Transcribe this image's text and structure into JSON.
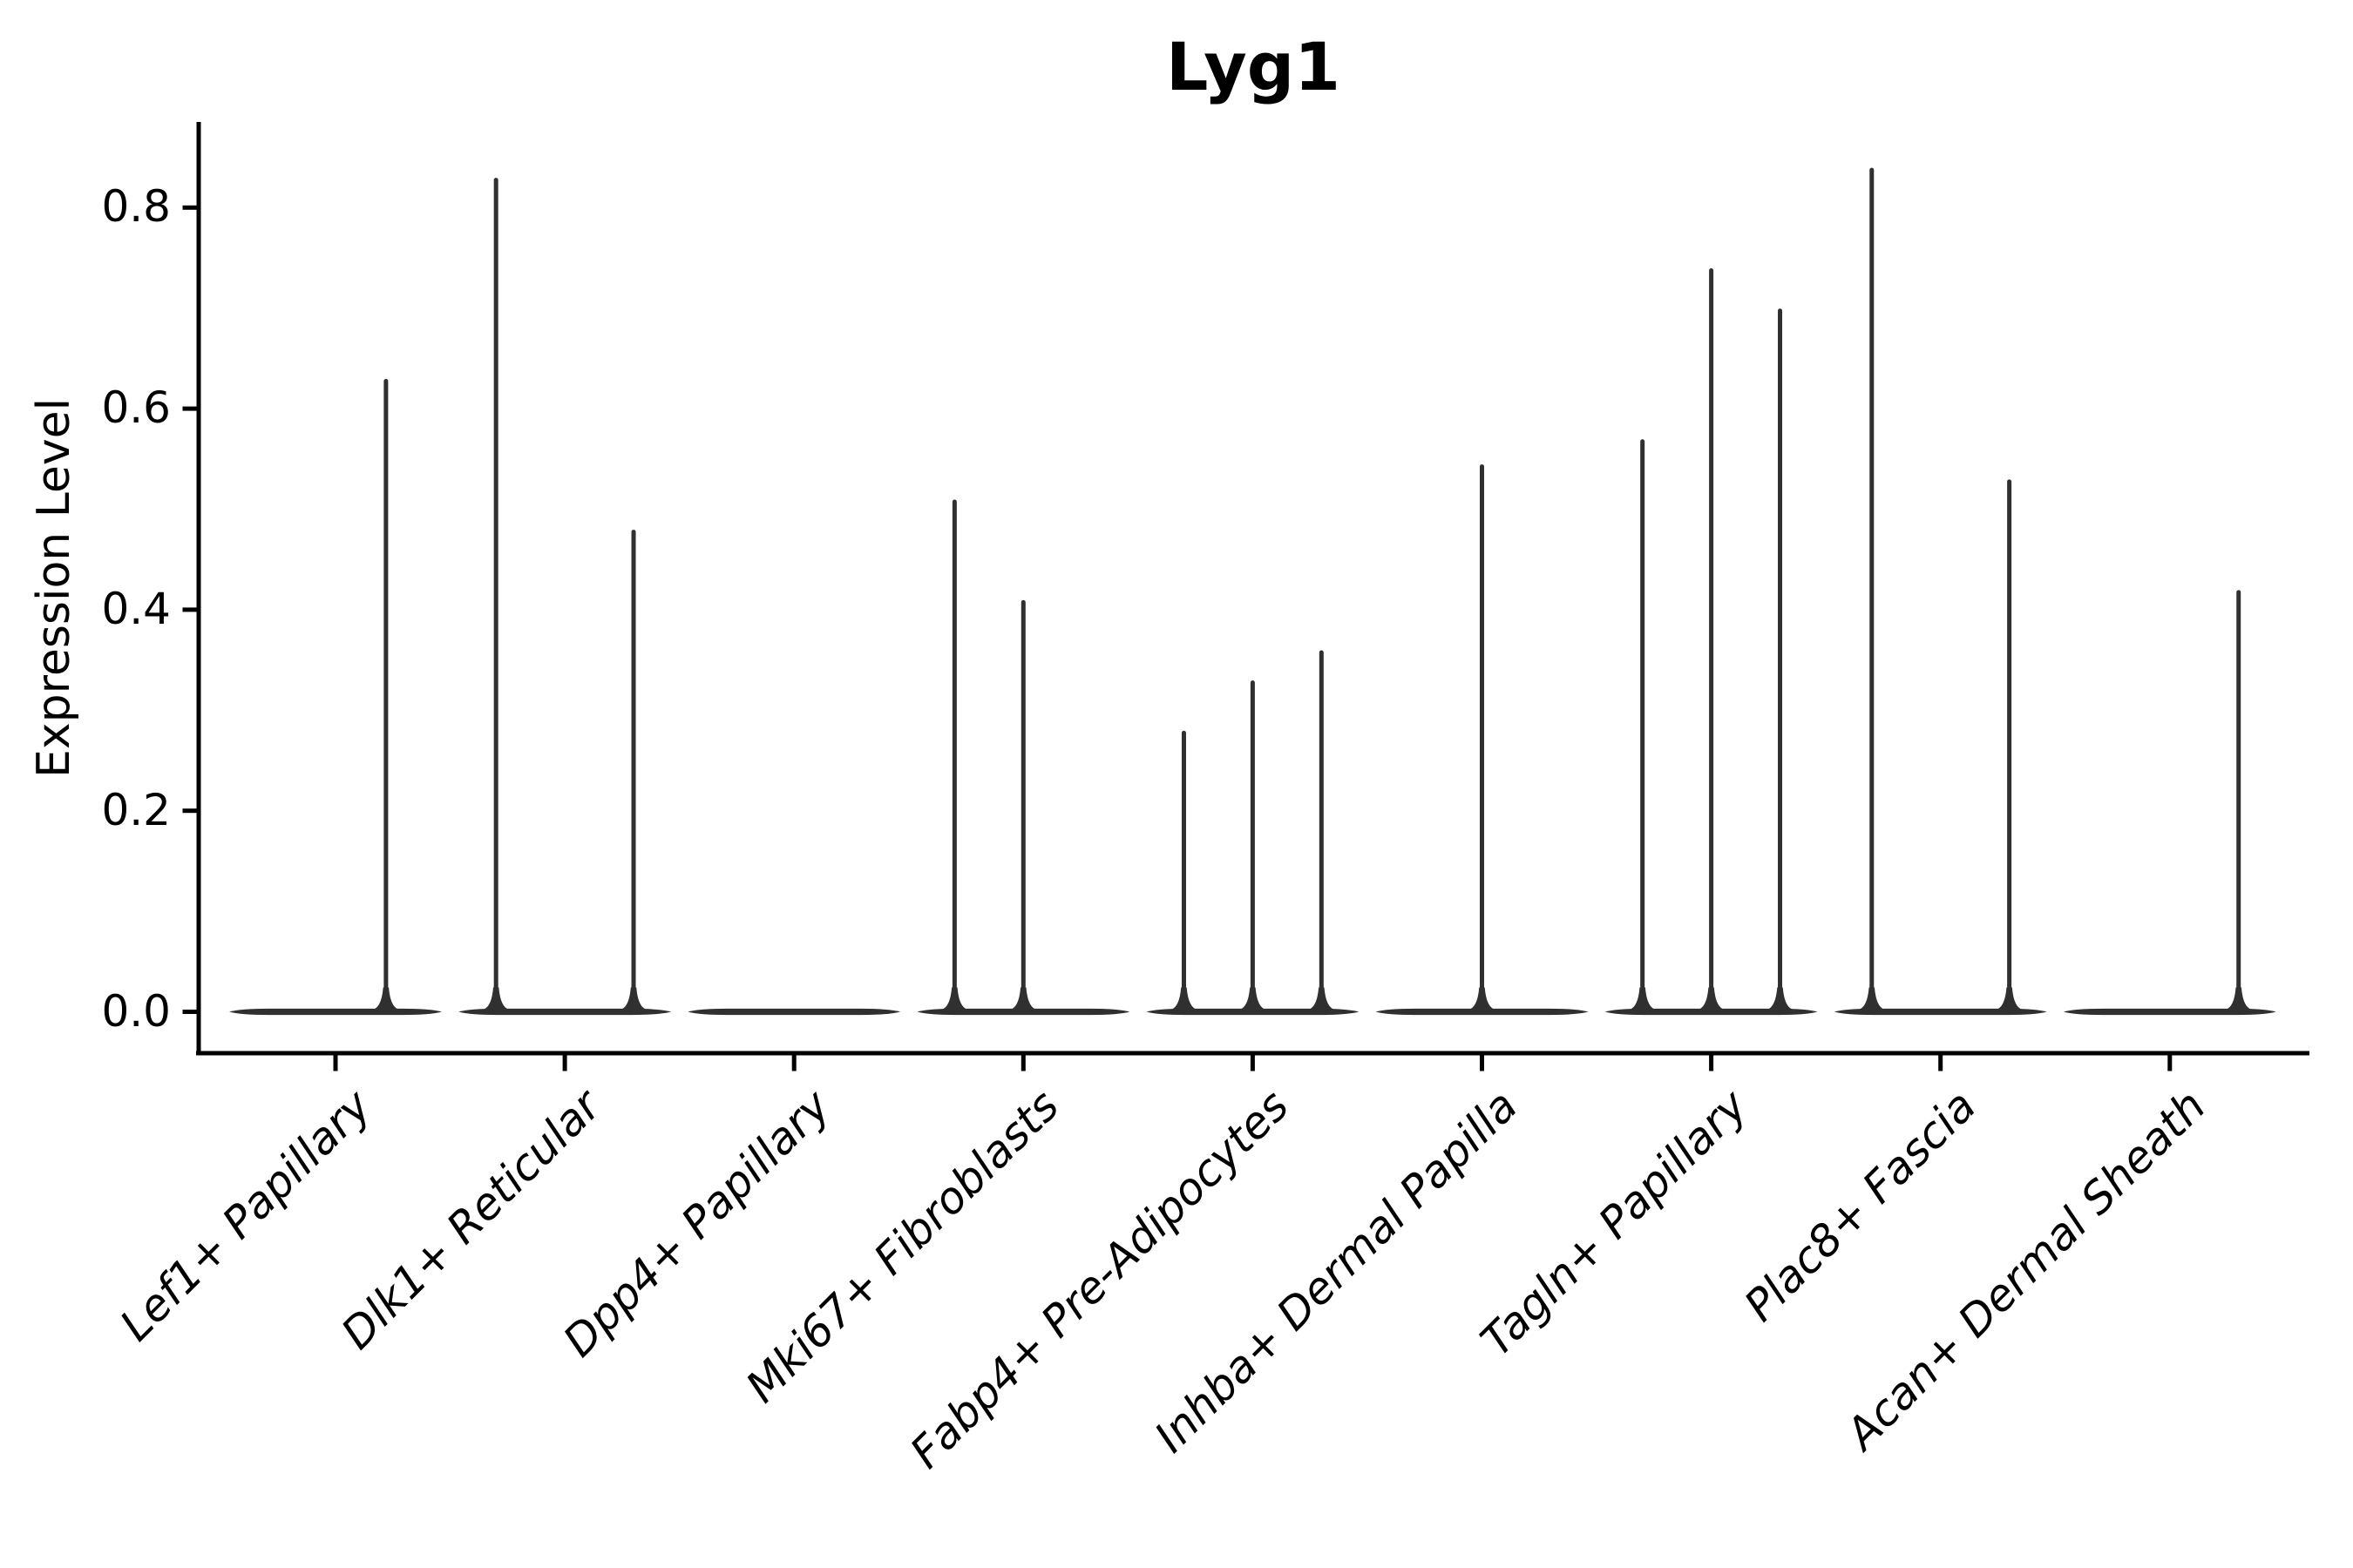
{
  "title": "Lyg1",
  "y_axis_label": "Expression Level",
  "colors": {
    "violin": "#303030",
    "axis": "#000000",
    "text": "#000000",
    "background": "#ffffff"
  },
  "chart_data": {
    "type": "violin",
    "title": "Lyg1",
    "xlabel": "",
    "ylabel": "Expression Level",
    "ylim": [
      0.0,
      0.89
    ],
    "yticks": [
      0.0,
      0.2,
      0.4,
      0.6,
      0.8
    ],
    "grid": false,
    "legend": null,
    "categories": [
      "Lef1+ Papillary",
      "Dlk1+ Reticular",
      "Dpp4+ Papillary",
      "Mki67+ Fibroblasts",
      "Fabp4+ Pre-Adipocytes",
      "Inhba+ Dermal Papilla",
      "Tagln+ Papillary",
      "Plac8+ Fascia",
      "Acan+ Dermal Sheath"
    ],
    "description": "Violin plot of Lyg1 expression; every cluster has the bulk of cells at expression 0 (wide flat base) with thin density spikes reaching the maximum expression of rare positive cells. 'offset' is the spike position within the category, as a fraction of category pitch; 'max' is the spike top in Expression Level units.",
    "violins": [
      {
        "category": "Lef1+ Papillary",
        "zero_base": true,
        "spikes": [
          {
            "offset": 0.22,
            "max": 0.63
          }
        ]
      },
      {
        "category": "Dlk1+ Reticular",
        "zero_base": true,
        "spikes": [
          {
            "offset": -0.3,
            "max": 0.83
          },
          {
            "offset": 0.3,
            "max": 0.48
          }
        ]
      },
      {
        "category": "Dpp4+ Papillary",
        "zero_base": true,
        "spikes": []
      },
      {
        "category": "Mki67+ Fibroblasts",
        "zero_base": true,
        "spikes": [
          {
            "offset": -0.3,
            "max": 0.51
          },
          {
            "offset": 0.0,
            "max": 0.41
          }
        ]
      },
      {
        "category": "Fabp4+ Pre-Adipocytes",
        "zero_base": true,
        "spikes": [
          {
            "offset": -0.3,
            "max": 0.28
          },
          {
            "offset": 0.0,
            "max": 0.33
          },
          {
            "offset": 0.3,
            "max": 0.36
          }
        ]
      },
      {
        "category": "Inhba+ Dermal Papilla",
        "zero_base": true,
        "spikes": [
          {
            "offset": 0.0,
            "max": 0.545
          }
        ]
      },
      {
        "category": "Tagln+ Papillary",
        "zero_base": true,
        "spikes": [
          {
            "offset": -0.3,
            "max": 0.57
          },
          {
            "offset": 0.0,
            "max": 0.74
          },
          {
            "offset": 0.3,
            "max": 0.7
          }
        ]
      },
      {
        "category": "Plac8+ Fascia",
        "zero_base": true,
        "spikes": [
          {
            "offset": -0.3,
            "max": 0.84
          },
          {
            "offset": 0.3,
            "max": 0.53
          }
        ]
      },
      {
        "category": "Acan+ Dermal Sheath",
        "zero_base": true,
        "spikes": [
          {
            "offset": 0.3,
            "max": 0.42
          }
        ]
      }
    ]
  }
}
